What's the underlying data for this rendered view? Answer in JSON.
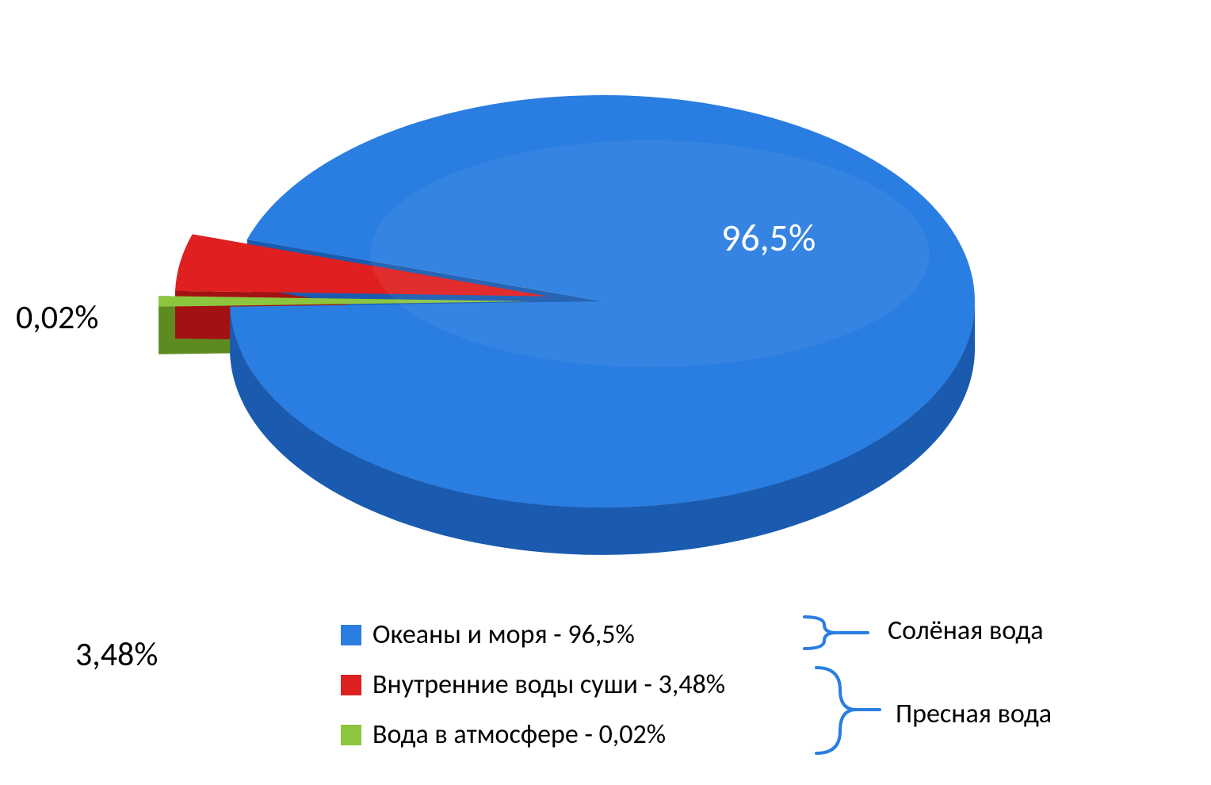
{
  "chart": {
    "type": "pie-3d-exploded",
    "background_color": "#ffffff",
    "slices": [
      {
        "name": "oceans",
        "value": 96.5,
        "label": "96,5%",
        "color_top": "#2a7de1",
        "color_side": "#1a5bb0",
        "exploded": false
      },
      {
        "name": "inland",
        "value": 3.48,
        "label": "3,48%",
        "color_top": "#e02020",
        "color_side": "#a31212",
        "exploded": true
      },
      {
        "name": "atmosphere",
        "value": 0.02,
        "label": "0,02%",
        "color_top": "#8cc63f",
        "color_side": "#5e8a22",
        "exploded": true
      }
    ],
    "label_fontsize": 42,
    "big_label_fontsize": 48,
    "big_label_color": "#ffffff"
  },
  "legend": {
    "fontsize": 34,
    "items": [
      {
        "swatch": "#2a7de1",
        "text": "Океаны и моря  - 96,5%"
      },
      {
        "swatch": "#e02020",
        "text": "Внутренние воды суши - 3,48%"
      },
      {
        "swatch": "#8cc63f",
        "text": "Вода в атмосфере - 0,02%"
      }
    ]
  },
  "brackets": {
    "stroke": "#2a7de1",
    "stroke_width": 4,
    "labels": {
      "salt": "Солёная вода",
      "fresh": "Пресная вода"
    },
    "label_fontsize": 34
  }
}
